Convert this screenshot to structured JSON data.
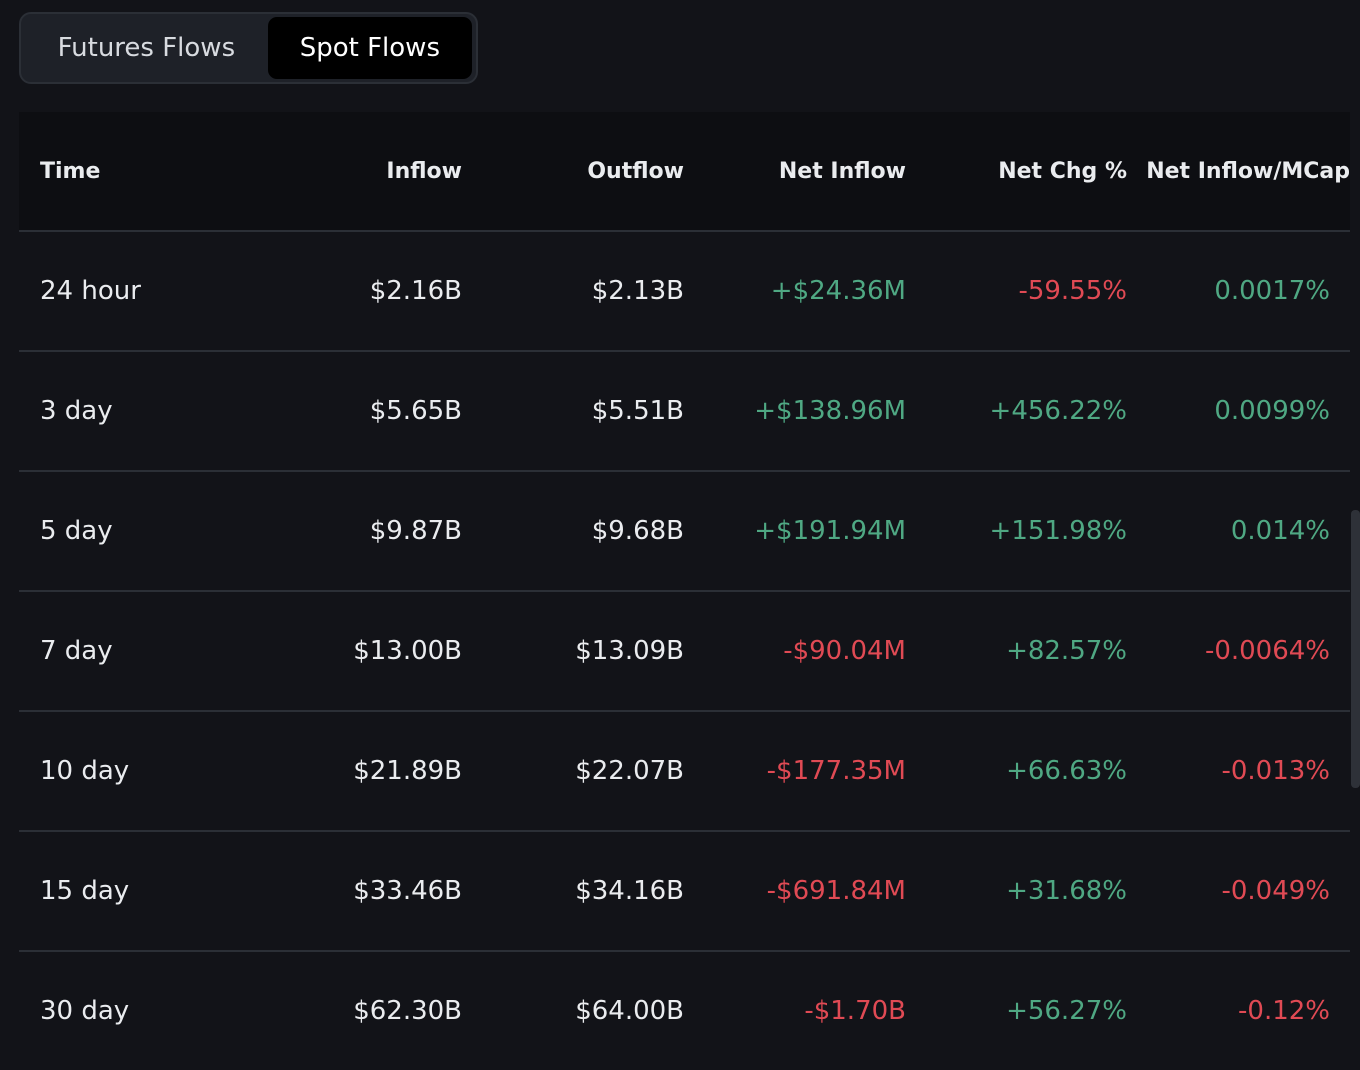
{
  "tabs": [
    {
      "label": "Futures Flows",
      "active": false
    },
    {
      "label": "Spot Flows",
      "active": true
    }
  ],
  "table": {
    "headers": {
      "time": "Time",
      "inflow": "Inflow",
      "outflow": "Outflow",
      "net_inflow": "Net Inflow",
      "net_chg": "Net Chg %",
      "net_inflow_mcap": "Net Inflow/MCap"
    },
    "rows": [
      {
        "time": "24 hour",
        "inflow": "$2.16B",
        "outflow": "$2.13B",
        "net_inflow": "+$24.36M",
        "net_chg": "-59.55%",
        "net_inflow_mcap": "0.0017%"
      },
      {
        "time": "3 day",
        "inflow": "$5.65B",
        "outflow": "$5.51B",
        "net_inflow": "+$138.96M",
        "net_chg": "+456.22%",
        "net_inflow_mcap": "0.0099%"
      },
      {
        "time": "5 day",
        "inflow": "$9.87B",
        "outflow": "$9.68B",
        "net_inflow": "+$191.94M",
        "net_chg": "+151.98%",
        "net_inflow_mcap": "0.014%"
      },
      {
        "time": "7 day",
        "inflow": "$13.00B",
        "outflow": "$13.09B",
        "net_inflow": "-$90.04M",
        "net_chg": "+82.57%",
        "net_inflow_mcap": "-0.0064%"
      },
      {
        "time": "10 day",
        "inflow": "$21.89B",
        "outflow": "$22.07B",
        "net_inflow": "-$177.35M",
        "net_chg": "+66.63%",
        "net_inflow_mcap": "-0.013%"
      },
      {
        "time": "15 day",
        "inflow": "$33.46B",
        "outflow": "$34.16B",
        "net_inflow": "-$691.84M",
        "net_chg": "+31.68%",
        "net_inflow_mcap": "-0.049%"
      },
      {
        "time": "30 day",
        "inflow": "$62.30B",
        "outflow": "$64.00B",
        "net_inflow": "-$1.70B",
        "net_chg": "+56.27%",
        "net_inflow_mcap": "-0.12%"
      }
    ]
  },
  "colors": {
    "positive": "#4fa883",
    "negative": "#e04a54",
    "background": "#121318"
  }
}
